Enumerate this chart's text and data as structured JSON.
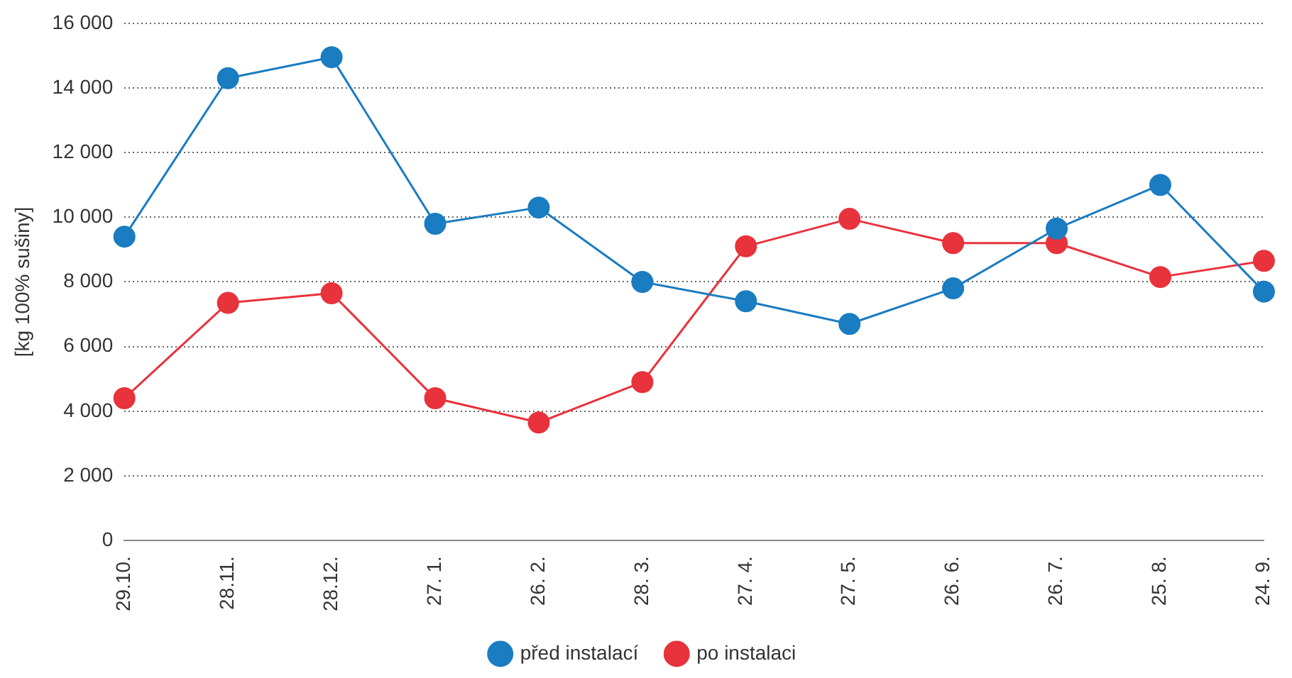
{
  "chart_data": {
    "type": "line",
    "ylabel": "[kg 100% sušiny]",
    "categories": [
      "29.10.",
      "28.11.",
      "28.12.",
      "27. 1.",
      "26. 2.",
      "28. 3.",
      "27. 4.",
      "27. 5.",
      "26. 6.",
      "26. 7.",
      "25. 8.",
      "24. 9."
    ],
    "series": [
      {
        "name": "před instalací",
        "color": "#1a7cc1",
        "values": [
          9400,
          14300,
          14950,
          9800,
          10300,
          8000,
          7400,
          6700,
          7800,
          9650,
          11000,
          7700
        ]
      },
      {
        "name": "po instalaci",
        "color": "#e8323c",
        "values": [
          4400,
          7350,
          7650,
          4400,
          3650,
          4900,
          9100,
          9950,
          9200,
          9200,
          8150,
          8650
        ]
      }
    ],
    "ylim": [
      0,
      16000
    ],
    "yticks": [
      0,
      {
        "value": 2000,
        "label": "2 000"
      },
      {
        "value": 4000,
        "label": "4 000"
      },
      {
        "value": 6000,
        "label": "6 000"
      },
      {
        "value": 8000,
        "label": "8 000"
      },
      {
        "value": 10000,
        "label": "10 000"
      },
      {
        "value": 12000,
        "label": "12 000"
      },
      {
        "value": 14000,
        "label": "14 000"
      },
      {
        "value": 16000,
        "label": "16 000"
      }
    ],
    "grid": "y",
    "legend": "bottom",
    "marker": "circle",
    "line_style": "solid"
  }
}
